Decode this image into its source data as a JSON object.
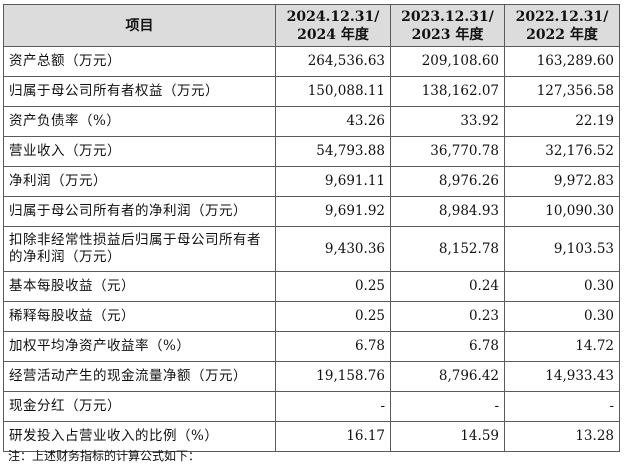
{
  "table": {
    "headers": [
      "项目",
      "2024.12.31/\n2024 年度",
      "2023.12.31/\n2023 年度",
      "2022.12.31/\n2022 年度"
    ],
    "rows": [
      {
        "label": "资产总额（万元）",
        "values": [
          "264,536.63",
          "209,108.60",
          "163,289.60"
        ]
      },
      {
        "label": "归属于母公司所有者权益（万元）",
        "values": [
          "150,088.11",
          "138,162.07",
          "127,356.58"
        ]
      },
      {
        "label": "资产负债率（%）",
        "values": [
          "43.26",
          "33.92",
          "22.19"
        ]
      },
      {
        "label": "营业收入（万元）",
        "values": [
          "54,793.88",
          "36,770.78",
          "32,176.52"
        ]
      },
      {
        "label": "净利润（万元）",
        "values": [
          "9,691.11",
          "8,976.26",
          "9,972.83"
        ]
      },
      {
        "label": "归属于母公司所有者的净利润（万元）",
        "values": [
          "9,691.92",
          "8,984.93",
          "10,090.30"
        ]
      },
      {
        "label": "扣除非经常性损益后归属于母公司所有者的净利润（万元）",
        "values": [
          "9,430.36",
          "8,152.78",
          "9,103.53"
        ]
      },
      {
        "label": "基本每股收益（元）",
        "values": [
          "0.25",
          "0.24",
          "0.30"
        ]
      },
      {
        "label": "稀释每股收益（元）",
        "values": [
          "0.25",
          "0.23",
          "0.30"
        ]
      },
      {
        "label": "加权平均净资产收益率（%）",
        "values": [
          "6.78",
          "6.78",
          "14.72"
        ]
      },
      {
        "label": "经营活动产生的现金流量净额（万元）",
        "values": [
          "19,158.76",
          "8,796.42",
          "14,933.43"
        ]
      },
      {
        "label": "现金分红（万元）",
        "values": [
          "-",
          "-",
          "-"
        ]
      },
      {
        "label": "研发投入占营业收入的比例（%）",
        "values": [
          "16.17",
          "14.59",
          "13.28"
        ]
      }
    ]
  },
  "footnote": "注：上述财务指标的计算公式如下："
}
